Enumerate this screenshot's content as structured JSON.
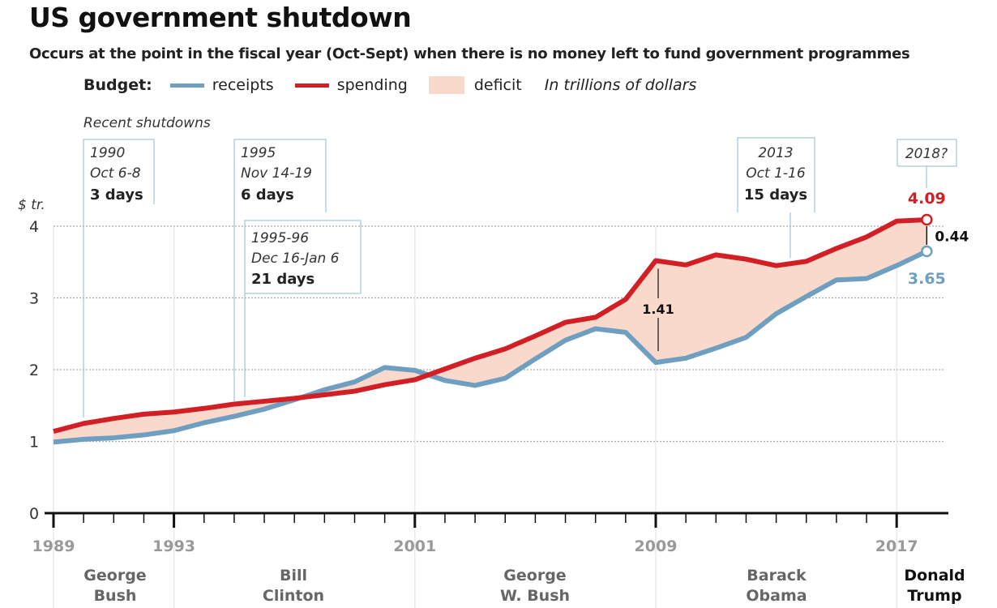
{
  "title": "US government shutdown",
  "subtitle": "Occurs at the point in the fiscal year (Oct-Sept) when there is no money left to fund government programmes",
  "legend": {
    "label": "Budget:",
    "receipts": "receipts",
    "spending": "spending",
    "deficit": "deficit",
    "unit_note": "In trillions of dollars"
  },
  "shutdowns_heading": "Recent shutdowns",
  "shutdowns": [
    {
      "year": "1990",
      "dates": "Oct 6-8",
      "duration": "3 days"
    },
    {
      "year": "1995",
      "dates": "Nov 14-19",
      "duration": "6 days"
    },
    {
      "year": "1995-96",
      "dates": "Dec 16-Jan 6",
      "duration": "21 days"
    },
    {
      "year": "2013",
      "dates": "Oct 1-16",
      "duration": "15 days"
    },
    {
      "year": "2018?"
    }
  ],
  "presidents": [
    {
      "line1": "George",
      "line2": "Bush"
    },
    {
      "line1": "Bill",
      "line2": "Clinton"
    },
    {
      "line1": "George",
      "line2": "W. Bush"
    },
    {
      "line1": "Barack",
      "line2": "Obama"
    },
    {
      "line1": "Donald",
      "line2": "Trump"
    }
  ],
  "colors": {
    "receipts": "#6e9fc0",
    "spending": "#d21f26",
    "deficit": "#f8d9cb"
  },
  "chart_data": {
    "type": "area",
    "ylabel": "$ tr.",
    "ylim": [
      0,
      4
    ],
    "yticks": [
      "0",
      "1",
      "2",
      "3",
      "4"
    ],
    "xticks": [
      "1989",
      "1993",
      "2001",
      "2009",
      "2017"
    ],
    "x": [
      1989,
      1990,
      1991,
      1992,
      1993,
      1994,
      1995,
      1996,
      1997,
      1998,
      1999,
      2000,
      2001,
      2002,
      2003,
      2004,
      2005,
      2006,
      2007,
      2008,
      2009,
      2010,
      2011,
      2012,
      2013,
      2014,
      2015,
      2016,
      2017,
      2018
    ],
    "series": [
      {
        "name": "receipts",
        "values": [
          0.99,
          1.03,
          1.05,
          1.09,
          1.15,
          1.26,
          1.35,
          1.45,
          1.58,
          1.72,
          1.83,
          2.03,
          1.99,
          1.85,
          1.78,
          1.88,
          2.15,
          2.41,
          2.57,
          2.52,
          2.1,
          2.16,
          2.3,
          2.45,
          2.78,
          3.02,
          3.25,
          3.27,
          3.45,
          3.65
        ]
      },
      {
        "name": "spending",
        "values": [
          1.14,
          1.25,
          1.32,
          1.38,
          1.41,
          1.46,
          1.52,
          1.56,
          1.6,
          1.65,
          1.7,
          1.79,
          1.86,
          2.01,
          2.16,
          2.29,
          2.47,
          2.66,
          2.73,
          2.98,
          3.52,
          3.46,
          3.6,
          3.54,
          3.45,
          3.51,
          3.69,
          3.85,
          4.07,
          4.09
        ]
      }
    ],
    "annotations": {
      "deficit_2009": "1.41",
      "deficit_2018": "0.44",
      "spending_2018": "4.09",
      "receipts_2018": "3.65"
    },
    "grid": "horizontal dotted"
  }
}
